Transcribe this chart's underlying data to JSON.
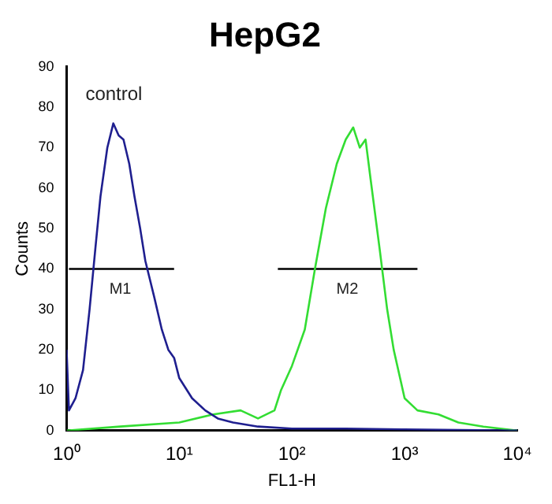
{
  "chart_data": {
    "type": "line",
    "title": "HepG2",
    "xlabel": "FL1-H",
    "ylabel": "Counts",
    "log": "x",
    "grid": false,
    "legend": false,
    "marker": "none",
    "line_style": "solid",
    "xlim": [
      1,
      10000
    ],
    "xticks": [
      {
        "value": 1,
        "label": "10⁰"
      },
      {
        "value": 10,
        "label": "10¹"
      },
      {
        "value": 100,
        "label": "10²"
      },
      {
        "value": 1000,
        "label": "10³"
      },
      {
        "value": 10000,
        "label": "10⁴"
      }
    ],
    "ylim": [
      0,
      90
    ],
    "yticks": [
      0,
      10,
      20,
      30,
      40,
      50,
      60,
      70,
      80,
      90
    ],
    "annotations": [
      "control",
      {
        "text": "M1",
        "x": 3,
        "y": 40
      },
      {
        "text": "M2",
        "x": 310,
        "y": 40
      }
    ],
    "series": [
      {
        "color": "#1f1f8f",
        "x": [
          1,
          1.05,
          1.2,
          1.4,
          1.6,
          1.8,
          2,
          2.3,
          2.6,
          2.9,
          3.2,
          3.6,
          4,
          4.5,
          5,
          6,
          7,
          8,
          9,
          10,
          13,
          17,
          22,
          30,
          50,
          100,
          300,
          1000,
          10000
        ],
        "values": [
          20,
          5,
          8,
          15,
          30,
          45,
          58,
          70,
          76,
          73,
          72,
          66,
          58,
          50,
          42,
          33,
          25,
          20,
          18,
          13,
          8,
          5,
          3,
          2,
          1,
          0.5,
          0.5,
          0.3,
          0
        ]
      },
      {
        "color": "#33dd33",
        "x": [
          1,
          3,
          10,
          20,
          35,
          50,
          70,
          80,
          100,
          130,
          160,
          200,
          250,
          300,
          350,
          400,
          450,
          500,
          600,
          700,
          800,
          1000,
          1300,
          2000,
          3000,
          5000,
          10000
        ],
        "values": [
          0,
          1,
          2,
          4,
          5,
          3,
          5,
          10,
          16,
          25,
          40,
          55,
          66,
          72,
          75,
          70,
          72,
          62,
          45,
          30,
          20,
          8,
          5,
          4,
          2,
          1,
          0
        ]
      },
      {
        "color": "#000000",
        "x": [
          1.05,
          9
        ],
        "values": [
          40,
          40
        ]
      },
      {
        "color": "#000000",
        "x": [
          75,
          1300
        ],
        "values": [
          40,
          40
        ]
      }
    ]
  }
}
